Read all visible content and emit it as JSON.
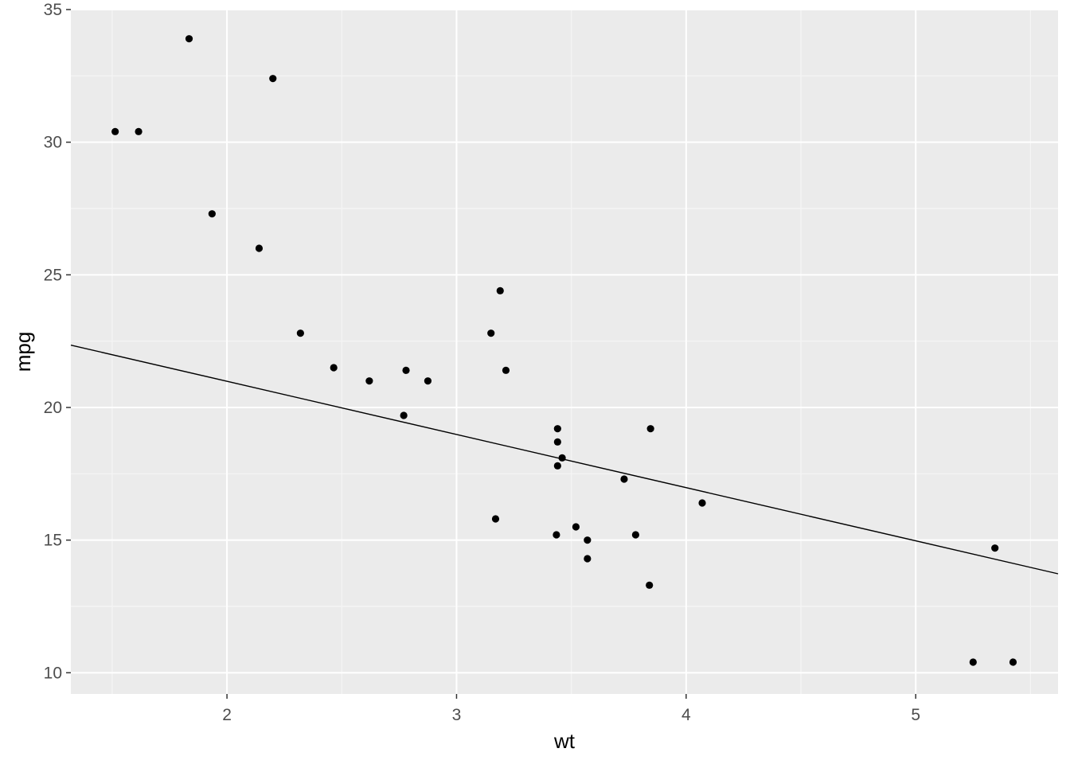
{
  "chart_data": {
    "type": "scatter",
    "title": "",
    "xlabel": "wt",
    "ylabel": "mpg",
    "xlim": [
      1.32,
      5.62
    ],
    "ylim": [
      9.2,
      35.0
    ],
    "x_ticks": [
      2,
      3,
      4,
      5
    ],
    "y_ticks": [
      10,
      15,
      20,
      25,
      30,
      35
    ],
    "x_tick_labels": [
      "2",
      "3",
      "4",
      "5"
    ],
    "y_tick_labels": [
      "10",
      "15",
      "20",
      "25",
      "30",
      "35"
    ],
    "grid": true,
    "legend": "none",
    "points": [
      {
        "x": 1.513,
        "y": 30.4
      },
      {
        "x": 1.615,
        "y": 30.4
      },
      {
        "x": 1.835,
        "y": 33.9
      },
      {
        "x": 1.935,
        "y": 27.3
      },
      {
        "x": 2.14,
        "y": 26.0
      },
      {
        "x": 2.2,
        "y": 32.4
      },
      {
        "x": 2.32,
        "y": 22.8
      },
      {
        "x": 2.465,
        "y": 21.5
      },
      {
        "x": 2.62,
        "y": 21.0
      },
      {
        "x": 2.77,
        "y": 19.7
      },
      {
        "x": 2.78,
        "y": 21.4
      },
      {
        "x": 2.875,
        "y": 21.0
      },
      {
        "x": 3.15,
        "y": 22.8
      },
      {
        "x": 3.17,
        "y": 15.8
      },
      {
        "x": 3.19,
        "y": 24.4
      },
      {
        "x": 3.215,
        "y": 21.4
      },
      {
        "x": 3.435,
        "y": 15.2
      },
      {
        "x": 3.44,
        "y": 19.2
      },
      {
        "x": 3.44,
        "y": 18.7
      },
      {
        "x": 3.44,
        "y": 17.8
      },
      {
        "x": 3.46,
        "y": 18.1
      },
      {
        "x": 3.52,
        "y": 15.5
      },
      {
        "x": 3.57,
        "y": 15.0
      },
      {
        "x": 3.57,
        "y": 14.3
      },
      {
        "x": 3.73,
        "y": 17.3
      },
      {
        "x": 3.78,
        "y": 15.2
      },
      {
        "x": 3.84,
        "y": 13.3
      },
      {
        "x": 3.845,
        "y": 19.2
      },
      {
        "x": 4.07,
        "y": 16.4
      },
      {
        "x": 5.25,
        "y": 10.4
      },
      {
        "x": 5.345,
        "y": 14.7
      },
      {
        "x": 5.424,
        "y": 10.4
      }
    ],
    "line": {
      "x1": 1.32,
      "y1": 22.35,
      "x2": 5.62,
      "y2": 13.73
    },
    "colors": {
      "panel_background": "#ebebeb",
      "grid_major": "#ffffff",
      "grid_minor": "#f5f5f5",
      "point": "#000000",
      "line": "#000000",
      "tick_label": "#4d4d4d",
      "tick_mark": "#333333"
    }
  }
}
